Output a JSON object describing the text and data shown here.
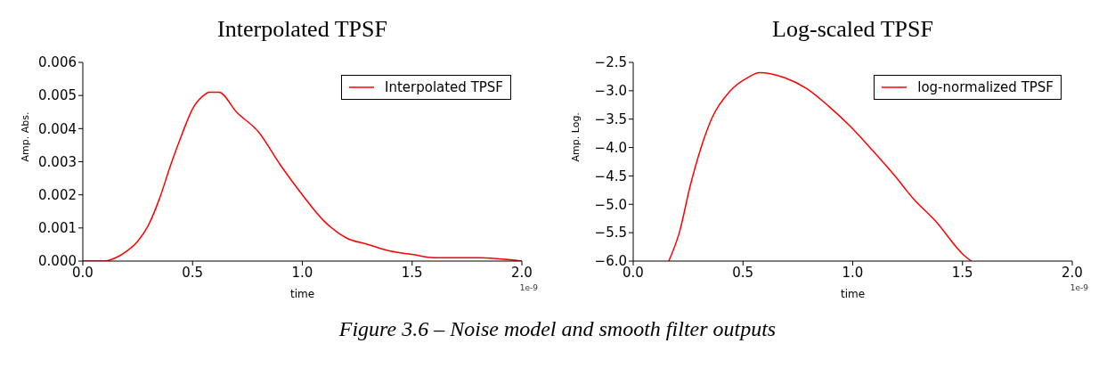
{
  "chart_data": [
    {
      "type": "line",
      "title": "Interpolated TPSF",
      "xlabel": "time",
      "ylabel": "Amp. Abs.",
      "series": [
        {
          "name": "Interpolated TPSF",
          "color": "#ff0000",
          "x": [
            0.0,
            0.1,
            0.15,
            0.2,
            0.25,
            0.3,
            0.35,
            0.4,
            0.45,
            0.5,
            0.55,
            0.575,
            0.62,
            0.7,
            0.8,
            0.9,
            1.0,
            1.1,
            1.2,
            1.3,
            1.4,
            1.5,
            1.6,
            1.7,
            1.8,
            2.0
          ],
          "values": [
            0.0,
            0.0,
            0.0001,
            0.0003,
            0.0006,
            0.0011,
            0.0019,
            0.0029,
            0.0038,
            0.0046,
            0.005,
            0.0051,
            0.0051,
            0.0045,
            0.0039,
            0.0029,
            0.002,
            0.0012,
            0.0007,
            0.0005,
            0.0003,
            0.0002,
            0.0001,
            0.0001,
            0.0001,
            0.0
          ]
        }
      ],
      "xlim": [
        0,
        2
      ],
      "xticks": [
        {
          "value": 0,
          "label": "0.0"
        },
        {
          "value": 0.5,
          "label": "0.5"
        },
        {
          "value": 1,
          "label": "1.0"
        },
        {
          "value": 1.5,
          "label": "1.5"
        },
        {
          "value": 2,
          "label": "2.0"
        }
      ],
      "ylim": [
        0,
        0.006
      ],
      "yticks": [
        {
          "value": 0,
          "label": "0.000"
        },
        {
          "value": 0.001,
          "label": "0.001"
        },
        {
          "value": 0.002,
          "label": "0.002"
        },
        {
          "value": 0.003,
          "label": "0.003"
        },
        {
          "value": 0.004,
          "label": "0.004"
        },
        {
          "value": 0.005,
          "label": "0.005"
        },
        {
          "value": 0.006,
          "label": "0.006"
        }
      ],
      "grid": false,
      "legend": "top right",
      "marker": "none",
      "line_style": "solid",
      "annotations": [
        "1e-9",
        "Figure 3.6 – Noise model and smooth filter outputs"
      ]
    },
    {
      "type": "line",
      "title": "Log-scaled TPSF",
      "xlabel": "time",
      "ylabel": "Amp. Log.",
      "series": [
        {
          "name": "log-normalized TPSF",
          "color": "#ff0000",
          "x": [
            0.162,
            0.21,
            0.26,
            0.31,
            0.36,
            0.44,
            0.525,
            0.575,
            0.69,
            0.79,
            0.89,
            0.99,
            1.09,
            1.19,
            1.276,
            1.376,
            1.51,
            1.54
          ],
          "values": [
            -6.0,
            -5.5,
            -4.67,
            -3.99,
            -3.47,
            -3.01,
            -2.76,
            -2.68,
            -2.77,
            -2.96,
            -3.27,
            -3.63,
            -4.05,
            -4.49,
            -4.9,
            -5.29,
            -5.91,
            -6.0
          ]
        }
      ],
      "xlim": [
        0,
        2
      ],
      "xticks": [
        {
          "value": 0,
          "label": "0.0"
        },
        {
          "value": 0.5,
          "label": "0.5"
        },
        {
          "value": 1,
          "label": "1.0"
        },
        {
          "value": 1.5,
          "label": "1.5"
        },
        {
          "value": 2,
          "label": "2.0"
        }
      ],
      "ylim": [
        -6,
        -2.5
      ],
      "yticks": [
        {
          "value": -6,
          "label": "−6.0"
        },
        {
          "value": -5.5,
          "label": "−5.5"
        },
        {
          "value": -5,
          "label": "−5.0"
        },
        {
          "value": -4.5,
          "label": "−4.5"
        },
        {
          "value": -4,
          "label": "−4.0"
        },
        {
          "value": -3.5,
          "label": "−3.5"
        },
        {
          "value": -3,
          "label": "−3.0"
        },
        {
          "value": -2.5,
          "label": "−2.5"
        }
      ],
      "grid": false,
      "legend": "top right",
      "marker": "none",
      "line_style": "solid",
      "annotations": [
        "1e-9"
      ]
    }
  ]
}
